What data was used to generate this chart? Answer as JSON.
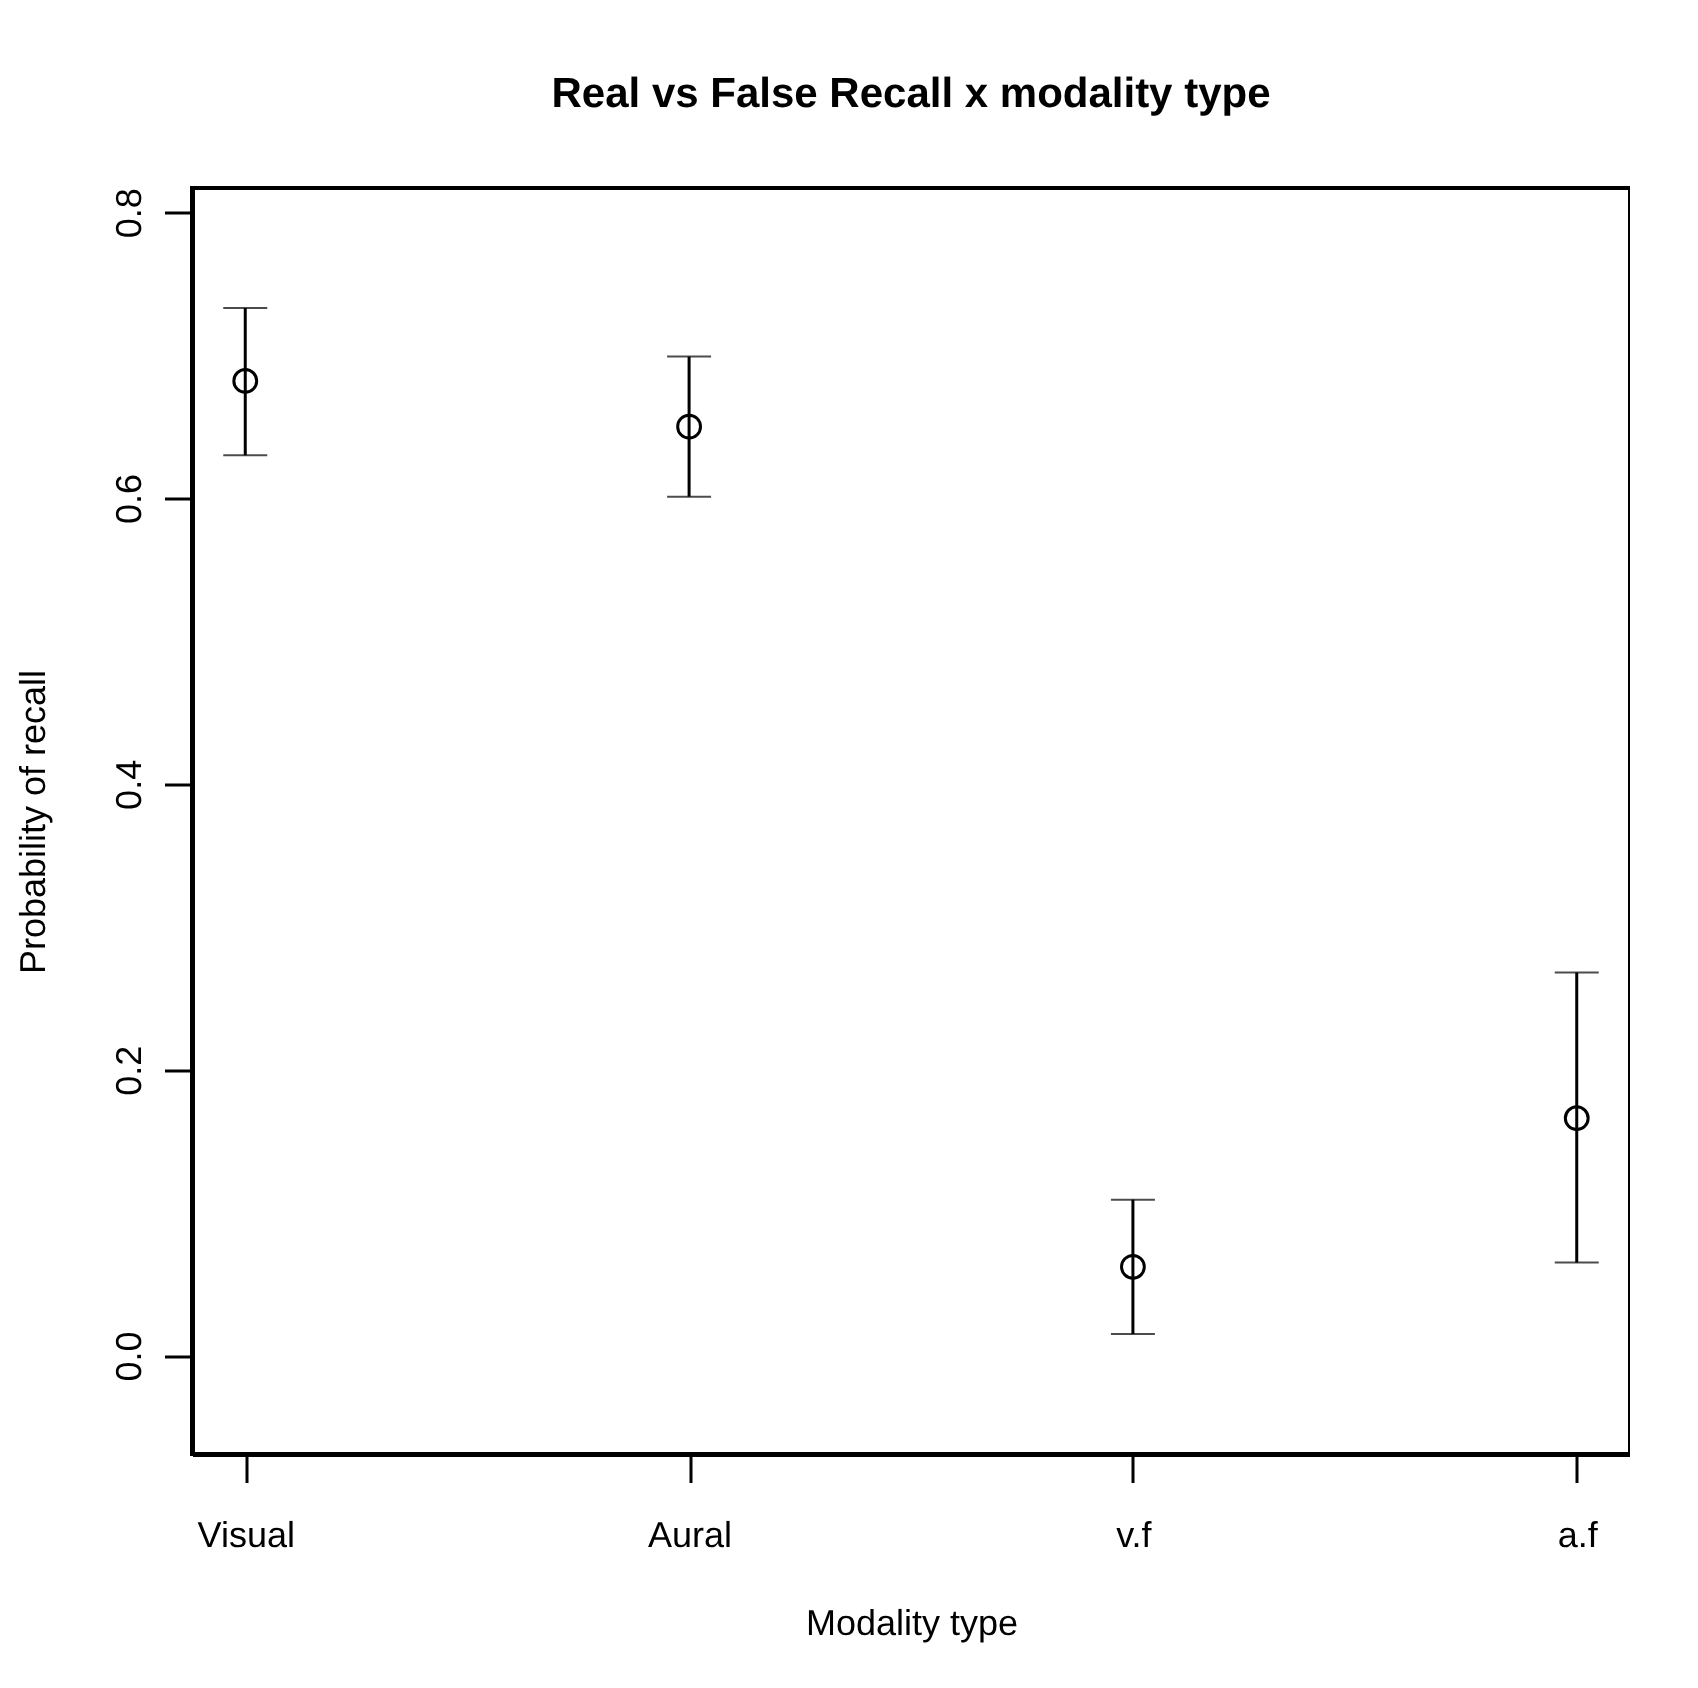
{
  "chart_data": {
    "type": "scatter",
    "title": "Real vs False Recall x modality type",
    "xlabel": "Modality type",
    "ylabel": "Probability of recall",
    "categories": [
      "Visual",
      "Aural",
      "v.f",
      "a.f"
    ],
    "series": [
      {
        "color": "#000000",
        "values": [
          0.682,
          0.65,
          0.062,
          0.166
        ],
        "errors": [
          [
            0.63,
            0.733
          ],
          [
            0.601,
            0.699
          ],
          [
            0.015,
            0.109
          ],
          [
            0.065,
            0.268
          ]
        ]
      }
    ],
    "ylim": [
      -0.069,
      0.817
    ],
    "yticks": [
      {
        "value": 0,
        "label": "0.0"
      },
      0.2,
      0.4,
      0.6,
      0.8
    ],
    "marker": "circle"
  }
}
